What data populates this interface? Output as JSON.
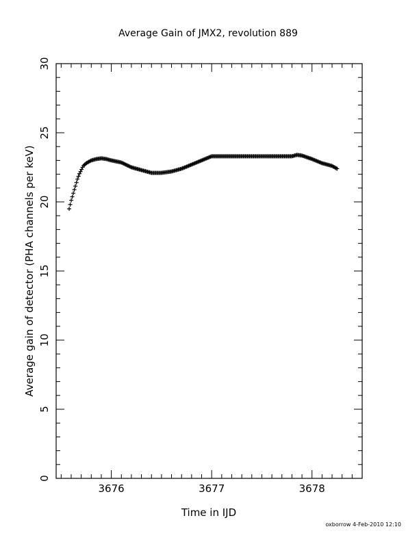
{
  "chart_data": {
    "type": "scatter",
    "title": "Average Gain of JMX2, revolution 889",
    "xlabel": "Time in IJD",
    "ylabel": "Average gain of detector (PHA channels per keV)",
    "xlim": [
      3675.45,
      3678.5
    ],
    "ylim": [
      0,
      30
    ],
    "x_major_ticks": [
      3676,
      3677,
      3678
    ],
    "x_minor_step": 0.1,
    "y_major_ticks": [
      0,
      5,
      10,
      15,
      20,
      25,
      30
    ],
    "y_minor_step": 1,
    "grid": false,
    "marker": "plus",
    "series": [
      {
        "x": [
          3675.58,
          3675.6,
          3675.62,
          3675.64,
          3675.66,
          3675.68,
          3675.7,
          3675.72,
          3675.75,
          3675.8,
          3675.85,
          3675.9,
          3675.95,
          3676.0,
          3676.1,
          3676.2,
          3676.3,
          3676.4,
          3676.5,
          3676.6,
          3676.7,
          3676.8,
          3676.9,
          3677.0,
          3677.1,
          3677.2,
          3677.3,
          3677.4,
          3677.5,
          3677.6,
          3677.7,
          3677.8,
          3677.85,
          3677.9,
          3678.0,
          3678.1,
          3678.2,
          3678.25
        ],
        "y": [
          19.5,
          20.1,
          20.6,
          21.1,
          21.6,
          22.0,
          22.3,
          22.6,
          22.8,
          23.0,
          23.1,
          23.15,
          23.1,
          23.0,
          22.85,
          22.5,
          22.3,
          22.1,
          22.1,
          22.2,
          22.4,
          22.7,
          23.0,
          23.3,
          23.3,
          23.3,
          23.3,
          23.3,
          23.3,
          23.3,
          23.3,
          23.3,
          23.4,
          23.35,
          23.1,
          22.8,
          22.6,
          22.4
        ]
      }
    ]
  },
  "footer": {
    "text": "oxborrow  4-Feb-2010 12:10"
  }
}
